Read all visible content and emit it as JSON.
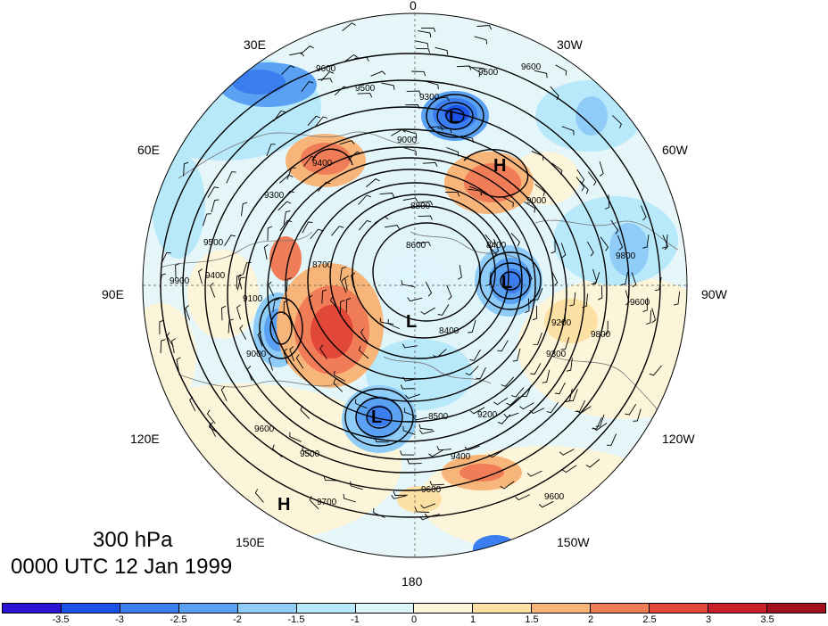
{
  "map": {
    "title_level": "300 hPa",
    "title_time": "0000 UTC 12 Jan 1999",
    "longitude_labels": {
      "deg0": "0",
      "deg30w": "30W",
      "deg60w": "60W",
      "deg90w": "90W",
      "deg120w": "120W",
      "deg150w": "150W",
      "deg180": "180",
      "deg150e": "150E",
      "deg120e": "120E",
      "deg90e": "90E",
      "deg60e": "60E",
      "deg30e": "30E"
    },
    "pressure_centers": [
      {
        "label": "L"
      },
      {
        "label": "L"
      },
      {
        "label": "L"
      },
      {
        "label": "L"
      },
      {
        "label": "H"
      },
      {
        "label": "H"
      }
    ],
    "contour_labels": [
      "9600",
      "9500",
      "9300",
      "9600",
      "9500",
      "9400",
      "9000",
      "9300",
      "9500",
      "9400",
      "8700",
      "9100",
      "9000",
      "8400",
      "8600",
      "8400",
      "8500",
      "9200",
      "9400",
      "9600",
      "9700",
      "9500",
      "9600",
      "9200",
      "9300",
      "9800",
      "9600",
      "8800",
      "9000",
      "9600",
      "9800",
      "9900"
    ],
    "colorbar": {
      "ticks": [
        "-3.5",
        "-3",
        "-2.5",
        "-2",
        "-1.5",
        "-1",
        "0",
        "1",
        "1.5",
        "2",
        "2.5",
        "3",
        "3.5"
      ],
      "colors": [
        "#2a13d4",
        "#1d52e6",
        "#3b7ef0",
        "#5aa0f3",
        "#8fcdf8",
        "#b8e9fb",
        "#def5fb",
        "#fdf5d9",
        "#fde0a3",
        "#f8b57a",
        "#f07d58",
        "#e24838",
        "#c81f28",
        "#a1101c"
      ]
    },
    "colors": {
      "coast": "#777777",
      "contour": "#000000",
      "background": "#ffffff"
    }
  }
}
